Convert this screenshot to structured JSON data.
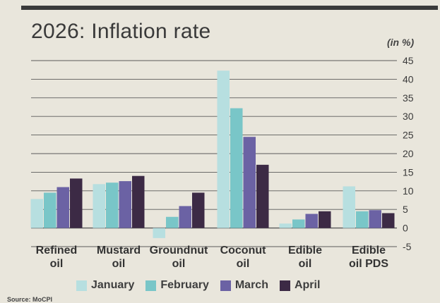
{
  "title": "2026: Inflation rate",
  "unit_label": "(in %)",
  "source_text": "Source: MoCPI",
  "colors": {
    "January": "#b7dfe0",
    "February": "#79c6c8",
    "March": "#6b62a4",
    "April": "#3c2a45",
    "grid": "#5a5a5a",
    "background": "#e9e6dc"
  },
  "chart_data": {
    "type": "bar",
    "title": "2026: Inflation rate",
    "ylabel": "(in %)",
    "ylim": [
      -5,
      45
    ],
    "yticks": [
      "45",
      "40",
      "35",
      "30",
      "25",
      "20",
      "15",
      "10",
      "5",
      "0",
      "-5"
    ],
    "grid": true,
    "legend_position": "bottom",
    "categories": [
      [
        "Refined",
        "oil"
      ],
      [
        "Mustard",
        "oil"
      ],
      [
        "Groundnut",
        "oil"
      ],
      [
        "Coconut",
        "oil"
      ],
      [
        "Edible",
        "oil"
      ],
      [
        "Edible",
        "oil PDS"
      ]
    ],
    "series": [
      {
        "name": "January",
        "values": [
          7.8,
          11.8,
          -2.7,
          42.3,
          1.2,
          11.2
        ]
      },
      {
        "name": "February",
        "values": [
          9.5,
          12.2,
          3.0,
          32.2,
          2.3,
          4.5
        ]
      },
      {
        "name": "March",
        "values": [
          11.0,
          12.6,
          5.9,
          24.5,
          3.8,
          4.8
        ]
      },
      {
        "name": "April",
        "values": [
          13.3,
          14.0,
          9.5,
          17.0,
          4.5,
          4.0
        ]
      }
    ]
  }
}
